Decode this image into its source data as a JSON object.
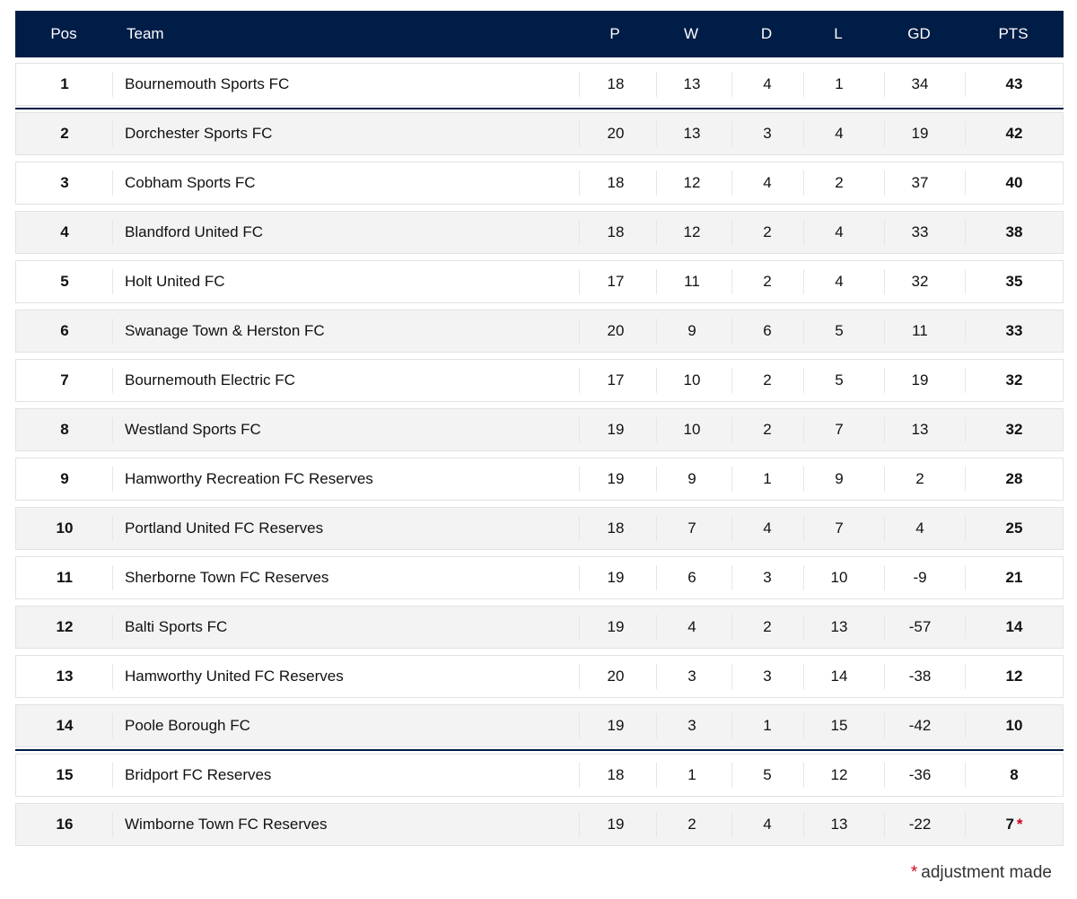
{
  "headers": {
    "pos": "Pos",
    "team": "Team",
    "p": "P",
    "w": "W",
    "d": "D",
    "l": "L",
    "gd": "GD",
    "pts": "PTS"
  },
  "rows": [
    {
      "pos": "1",
      "team": "Bournemouth Sports FC",
      "p": "18",
      "w": "13",
      "d": "4",
      "l": "1",
      "gd": "34",
      "pts": "43"
    },
    {
      "pos": "2",
      "team": "Dorchester Sports FC",
      "p": "20",
      "w": "13",
      "d": "3",
      "l": "4",
      "gd": "19",
      "pts": "42"
    },
    {
      "pos": "3",
      "team": "Cobham Sports FC",
      "p": "18",
      "w": "12",
      "d": "4",
      "l": "2",
      "gd": "37",
      "pts": "40"
    },
    {
      "pos": "4",
      "team": "Blandford United FC",
      "p": "18",
      "w": "12",
      "d": "2",
      "l": "4",
      "gd": "33",
      "pts": "38"
    },
    {
      "pos": "5",
      "team": "Holt United FC",
      "p": "17",
      "w": "11",
      "d": "2",
      "l": "4",
      "gd": "32",
      "pts": "35"
    },
    {
      "pos": "6",
      "team": "Swanage Town & Herston FC",
      "p": "20",
      "w": "9",
      "d": "6",
      "l": "5",
      "gd": "11",
      "pts": "33"
    },
    {
      "pos": "7",
      "team": "Bournemouth Electric FC",
      "p": "17",
      "w": "10",
      "d": "2",
      "l": "5",
      "gd": "19",
      "pts": "32"
    },
    {
      "pos": "8",
      "team": "Westland Sports FC",
      "p": "19",
      "w": "10",
      "d": "2",
      "l": "7",
      "gd": "13",
      "pts": "32"
    },
    {
      "pos": "9",
      "team": "Hamworthy Recreation FC Reserves",
      "p": "19",
      "w": "9",
      "d": "1",
      "l": "9",
      "gd": "2",
      "pts": "28"
    },
    {
      "pos": "10",
      "team": "Portland United FC Reserves",
      "p": "18",
      "w": "7",
      "d": "4",
      "l": "7",
      "gd": "4",
      "pts": "25"
    },
    {
      "pos": "11",
      "team": "Sherborne Town FC Reserves",
      "p": "19",
      "w": "6",
      "d": "3",
      "l": "10",
      "gd": "-9",
      "pts": "21"
    },
    {
      "pos": "12",
      "team": "Balti Sports FC",
      "p": "19",
      "w": "4",
      "d": "2",
      "l": "13",
      "gd": "-57",
      "pts": "14"
    },
    {
      "pos": "13",
      "team": "Hamworthy United FC Reserves",
      "p": "20",
      "w": "3",
      "d": "3",
      "l": "14",
      "gd": "-38",
      "pts": "12"
    },
    {
      "pos": "14",
      "team": "Poole Borough FC",
      "p": "19",
      "w": "3",
      "d": "1",
      "l": "15",
      "gd": "-42",
      "pts": "10"
    },
    {
      "pos": "15",
      "team": "Bridport FC Reserves",
      "p": "18",
      "w": "1",
      "d": "5",
      "l": "12",
      "gd": "-36",
      "pts": "8"
    },
    {
      "pos": "16",
      "team": "Wimborne Town FC Reserves",
      "p": "19",
      "w": "2",
      "d": "4",
      "l": "13",
      "gd": "-22",
      "pts": "7",
      "adjusted": true
    }
  ],
  "adjustment_marker": "*",
  "footnote": "adjustment made",
  "colors": {
    "header_bg": "#001d48",
    "zone_line": "#001d48",
    "asterisk": "#d0021b"
  }
}
